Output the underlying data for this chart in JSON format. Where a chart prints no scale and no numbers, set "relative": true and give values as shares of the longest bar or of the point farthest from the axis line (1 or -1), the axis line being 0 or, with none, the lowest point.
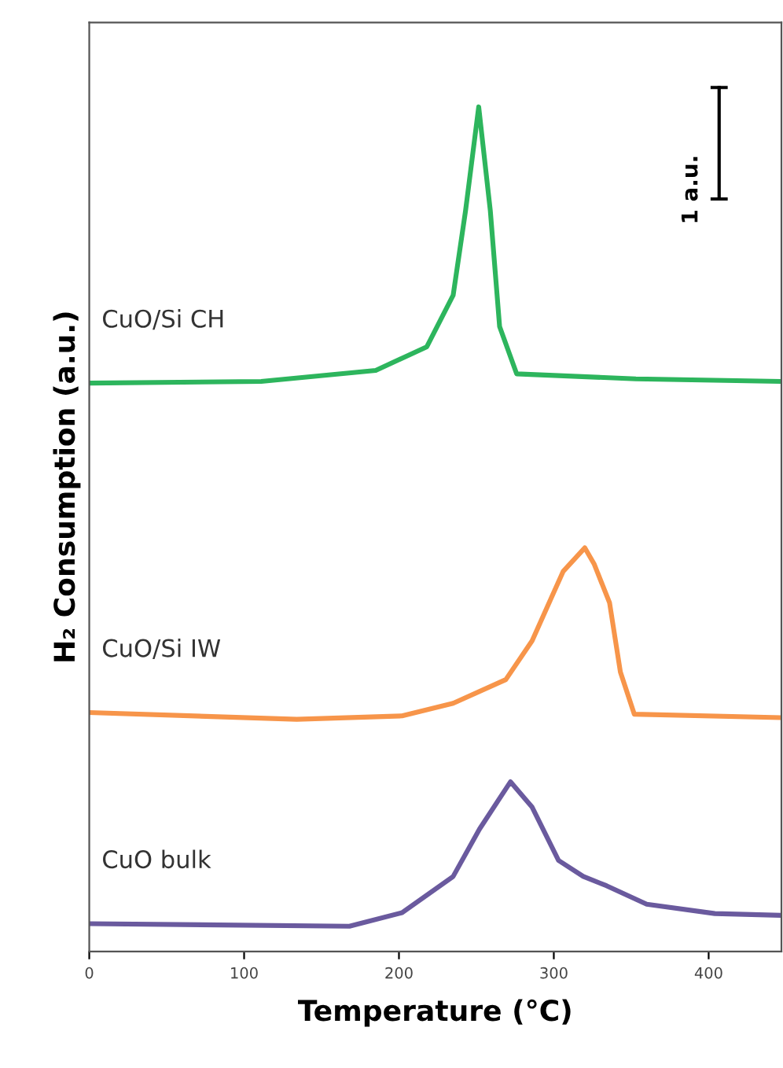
{
  "chart_data": {
    "type": "line",
    "xlabel": "Temperature (°C)",
    "ylabel": "H₂ Consumption (a.u.)",
    "relative": true,
    "xlim": [
      0,
      447
    ],
    "xticks": [
      0,
      100,
      200,
      300,
      400
    ],
    "grid": false,
    "legend": false,
    "marker": "none",
    "line_style": "solid",
    "annotations": [
      "1 a.u."
    ],
    "series": [
      {
        "name": "CuO/Si CH",
        "color": "#2db55d",
        "x": [
          1,
          111,
          185,
          218,
          235,
          243,
          251.5,
          259,
          265,
          276,
          353,
          445
        ],
        "values": [
          0.673,
          0.675,
          0.688,
          0.716,
          0.777,
          0.877,
          1.0,
          0.877,
          0.74,
          0.684,
          0.678,
          0.675
        ]
      },
      {
        "name": "CuO/Si IW",
        "color": "#f7954a",
        "x": [
          0,
          134,
          202,
          235,
          269,
          286,
          306,
          320,
          326,
          336,
          343,
          352,
          445
        ],
        "values": [
          0.283,
          0.275,
          0.279,
          0.294,
          0.322,
          0.368,
          0.45,
          0.478,
          0.459,
          0.413,
          0.331,
          0.281,
          0.277
        ]
      },
      {
        "name": "CuO bulk",
        "color": "#6a5a9e",
        "x": [
          0,
          168,
          202,
          235,
          252,
          272,
          286,
          303,
          319,
          334,
          360,
          404,
          445
        ],
        "values": [
          0.033,
          0.03,
          0.046,
          0.089,
          0.145,
          0.201,
          0.171,
          0.108,
          0.089,
          0.078,
          0.056,
          0.045,
          0.043
        ]
      }
    ]
  }
}
